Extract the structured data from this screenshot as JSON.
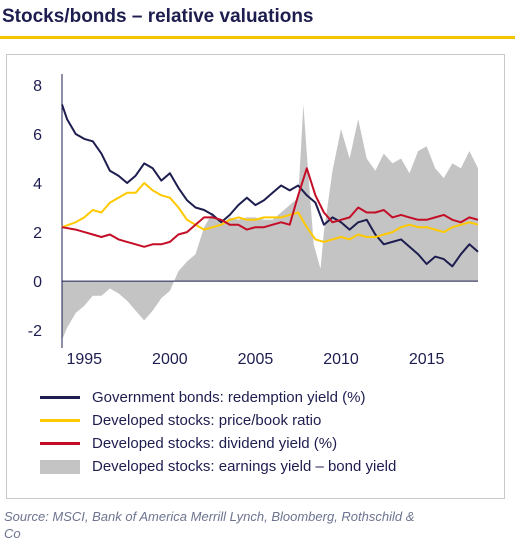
{
  "title": "Stocks/bonds – relative valuations",
  "source": "Source: MSCI, Bank of America Merrill Lynch, Bloomberg, Rothschild & Co",
  "colors": {
    "navy": "#1d1d4f",
    "yellow": "#ffc900",
    "red": "#c40e27",
    "area": "#c4c4c4",
    "accent_rule": "#f5c400"
  },
  "chart_data": {
    "type": "line",
    "x_ticks": [
      1995,
      2000,
      2005,
      2010,
      2015
    ],
    "y_ticks": [
      -2,
      0,
      2,
      4,
      6,
      8
    ],
    "xlim": [
      1993.7,
      2018.0
    ],
    "ylim": [
      -2.4,
      8.2
    ],
    "grid": false,
    "legend_position": "bottom",
    "series": [
      {
        "name": "Government bonds: redemption yield (%)",
        "kind": "line",
        "color": "#1d1d4f",
        "points": [
          [
            1993.7,
            7.2
          ],
          [
            1994.0,
            6.6
          ],
          [
            1994.5,
            6.0
          ],
          [
            1995.0,
            5.8
          ],
          [
            1995.5,
            5.7
          ],
          [
            1996.0,
            5.2
          ],
          [
            1996.5,
            4.5
          ],
          [
            1997.0,
            4.3
          ],
          [
            1997.5,
            4.0
          ],
          [
            1998.0,
            4.3
          ],
          [
            1998.5,
            4.8
          ],
          [
            1999.0,
            4.6
          ],
          [
            1999.5,
            4.1
          ],
          [
            2000.0,
            4.4
          ],
          [
            2000.5,
            3.8
          ],
          [
            2001.0,
            3.3
          ],
          [
            2001.5,
            3.0
          ],
          [
            2002.0,
            2.9
          ],
          [
            2002.5,
            2.7
          ],
          [
            2003.0,
            2.4
          ],
          [
            2003.5,
            2.7
          ],
          [
            2004.0,
            3.1
          ],
          [
            2004.5,
            3.4
          ],
          [
            2005.0,
            3.1
          ],
          [
            2005.5,
            3.3
          ],
          [
            2006.0,
            3.6
          ],
          [
            2006.5,
            3.9
          ],
          [
            2007.0,
            3.7
          ],
          [
            2007.5,
            3.9
          ],
          [
            2008.0,
            3.5
          ],
          [
            2008.5,
            3.2
          ],
          [
            2009.0,
            2.3
          ],
          [
            2009.5,
            2.6
          ],
          [
            2010.0,
            2.4
          ],
          [
            2010.5,
            2.1
          ],
          [
            2011.0,
            2.4
          ],
          [
            2011.5,
            2.5
          ],
          [
            2012.0,
            1.9
          ],
          [
            2012.5,
            1.5
          ],
          [
            2013.0,
            1.6
          ],
          [
            2013.5,
            1.7
          ],
          [
            2014.0,
            1.4
          ],
          [
            2014.5,
            1.1
          ],
          [
            2015.0,
            0.7
          ],
          [
            2015.5,
            1.0
          ],
          [
            2016.0,
            0.9
          ],
          [
            2016.5,
            0.6
          ],
          [
            2017.0,
            1.1
          ],
          [
            2017.5,
            1.5
          ],
          [
            2018.0,
            1.2
          ]
        ]
      },
      {
        "name": "Developed stocks: price/book ratio",
        "kind": "line",
        "color": "#ffc900",
        "points": [
          [
            1993.7,
            2.2
          ],
          [
            1994.5,
            2.4
          ],
          [
            1995.0,
            2.6
          ],
          [
            1995.5,
            2.9
          ],
          [
            1996.0,
            2.8
          ],
          [
            1996.5,
            3.2
          ],
          [
            1997.0,
            3.4
          ],
          [
            1997.5,
            3.6
          ],
          [
            1998.0,
            3.6
          ],
          [
            1998.5,
            4.0
          ],
          [
            1999.0,
            3.7
          ],
          [
            1999.5,
            3.5
          ],
          [
            2000.0,
            3.4
          ],
          [
            2000.5,
            3.0
          ],
          [
            2001.0,
            2.5
          ],
          [
            2001.5,
            2.3
          ],
          [
            2002.0,
            2.1
          ],
          [
            2002.5,
            2.2
          ],
          [
            2003.0,
            2.3
          ],
          [
            2003.5,
            2.5
          ],
          [
            2004.0,
            2.6
          ],
          [
            2004.5,
            2.5
          ],
          [
            2005.0,
            2.5
          ],
          [
            2005.5,
            2.6
          ],
          [
            2006.0,
            2.6
          ],
          [
            2006.5,
            2.6
          ],
          [
            2007.0,
            2.7
          ],
          [
            2007.5,
            2.8
          ],
          [
            2008.0,
            2.2
          ],
          [
            2008.5,
            1.7
          ],
          [
            2009.0,
            1.6
          ],
          [
            2009.5,
            1.7
          ],
          [
            2010.0,
            1.8
          ],
          [
            2010.5,
            1.7
          ],
          [
            2011.0,
            1.9
          ],
          [
            2011.5,
            1.8
          ],
          [
            2012.0,
            1.8
          ],
          [
            2012.5,
            1.9
          ],
          [
            2013.0,
            2.0
          ],
          [
            2013.5,
            2.2
          ],
          [
            2014.0,
            2.3
          ],
          [
            2014.5,
            2.2
          ],
          [
            2015.0,
            2.2
          ],
          [
            2015.5,
            2.1
          ],
          [
            2016.0,
            2.0
          ],
          [
            2016.5,
            2.2
          ],
          [
            2017.0,
            2.3
          ],
          [
            2017.5,
            2.4
          ],
          [
            2018.0,
            2.3
          ]
        ]
      },
      {
        "name": "Developed stocks: dividend yield (%)",
        "kind": "line",
        "color": "#c40e27",
        "points": [
          [
            1993.7,
            2.2
          ],
          [
            1994.5,
            2.1
          ],
          [
            1995.0,
            2.0
          ],
          [
            1995.5,
            1.9
          ],
          [
            1996.0,
            1.8
          ],
          [
            1996.5,
            1.9
          ],
          [
            1997.0,
            1.7
          ],
          [
            1997.5,
            1.6
          ],
          [
            1998.0,
            1.5
          ],
          [
            1998.5,
            1.4
          ],
          [
            1999.0,
            1.5
          ],
          [
            1999.5,
            1.5
          ],
          [
            2000.0,
            1.6
          ],
          [
            2000.5,
            1.9
          ],
          [
            2001.0,
            2.0
          ],
          [
            2001.5,
            2.3
          ],
          [
            2002.0,
            2.6
          ],
          [
            2002.5,
            2.6
          ],
          [
            2003.0,
            2.5
          ],
          [
            2003.5,
            2.3
          ],
          [
            2004.0,
            2.3
          ],
          [
            2004.5,
            2.1
          ],
          [
            2005.0,
            2.2
          ],
          [
            2005.5,
            2.2
          ],
          [
            2006.0,
            2.3
          ],
          [
            2006.5,
            2.4
          ],
          [
            2007.0,
            2.3
          ],
          [
            2007.5,
            3.5
          ],
          [
            2008.0,
            4.6
          ],
          [
            2008.5,
            3.5
          ],
          [
            2009.0,
            2.8
          ],
          [
            2009.5,
            2.4
          ],
          [
            2010.0,
            2.5
          ],
          [
            2010.5,
            2.6
          ],
          [
            2011.0,
            3.0
          ],
          [
            2011.5,
            2.8
          ],
          [
            2012.0,
            2.8
          ],
          [
            2012.5,
            2.9
          ],
          [
            2013.0,
            2.6
          ],
          [
            2013.5,
            2.7
          ],
          [
            2014.0,
            2.6
          ],
          [
            2014.5,
            2.5
          ],
          [
            2015.0,
            2.5
          ],
          [
            2015.5,
            2.6
          ],
          [
            2016.0,
            2.7
          ],
          [
            2016.5,
            2.5
          ],
          [
            2017.0,
            2.4
          ],
          [
            2017.5,
            2.6
          ],
          [
            2018.0,
            2.5
          ]
        ]
      },
      {
        "name": "Developed stocks: earnings yield – bond yield",
        "kind": "area",
        "color": "#c4c4c4",
        "points": [
          [
            1993.7,
            -2.4
          ],
          [
            1994.0,
            -1.9
          ],
          [
            1994.5,
            -1.3
          ],
          [
            1995.0,
            -1.0
          ],
          [
            1995.5,
            -0.6
          ],
          [
            1996.0,
            -0.6
          ],
          [
            1996.5,
            -0.3
          ],
          [
            1997.0,
            -0.5
          ],
          [
            1997.5,
            -0.8
          ],
          [
            1998.0,
            -1.2
          ],
          [
            1998.5,
            -1.6
          ],
          [
            1999.0,
            -1.2
          ],
          [
            1999.5,
            -0.7
          ],
          [
            2000.0,
            -0.4
          ],
          [
            2000.5,
            0.4
          ],
          [
            2001.0,
            0.8
          ],
          [
            2001.5,
            1.1
          ],
          [
            2002.0,
            2.2
          ],
          [
            2002.5,
            2.8
          ],
          [
            2003.0,
            2.3
          ],
          [
            2003.5,
            2.6
          ],
          [
            2004.0,
            2.5
          ],
          [
            2004.5,
            2.6
          ],
          [
            2005.0,
            2.6
          ],
          [
            2005.5,
            2.5
          ],
          [
            2006.0,
            2.5
          ],
          [
            2006.5,
            2.8
          ],
          [
            2007.0,
            3.1
          ],
          [
            2007.5,
            3.4
          ],
          [
            2007.8,
            7.2
          ],
          [
            2008.0,
            5.2
          ],
          [
            2008.4,
            1.5
          ],
          [
            2008.8,
            0.5
          ],
          [
            2009.0,
            2.0
          ],
          [
            2009.5,
            4.5
          ],
          [
            2010.0,
            6.2
          ],
          [
            2010.5,
            5.0
          ],
          [
            2011.0,
            6.6
          ],
          [
            2011.5,
            5.0
          ],
          [
            2012.0,
            4.5
          ],
          [
            2012.5,
            5.2
          ],
          [
            2013.0,
            4.8
          ],
          [
            2013.5,
            5.0
          ],
          [
            2014.0,
            4.4
          ],
          [
            2014.5,
            5.3
          ],
          [
            2015.0,
            5.5
          ],
          [
            2015.5,
            4.6
          ],
          [
            2016.0,
            4.2
          ],
          [
            2016.5,
            4.8
          ],
          [
            2017.0,
            4.6
          ],
          [
            2017.5,
            5.3
          ],
          [
            2018.0,
            4.6
          ]
        ]
      }
    ]
  }
}
